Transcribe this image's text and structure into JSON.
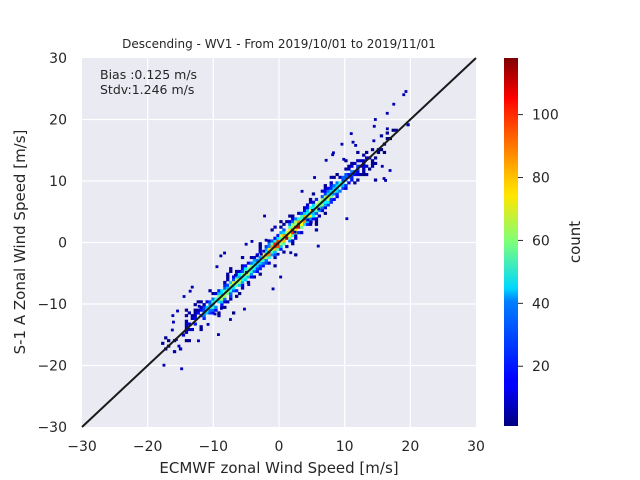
{
  "chart_data": {
    "type": "heatmap",
    "title": "Descending - WV1 - From 2019/10/01 to 2019/11/01",
    "xlabel": "ECMWF zonal Wind Speed [m/s]",
    "ylabel": "S-1 A Zonal Wind Speed [m/s]",
    "xlim": [
      -30,
      30
    ],
    "ylim": [
      -30,
      30
    ],
    "xticks": [
      "−30",
      "−20",
      "−10",
      "0",
      "10",
      "20",
      "30"
    ],
    "yticks": [
      "−30",
      "−20",
      "−10",
      "0",
      "10",
      "20",
      "30"
    ],
    "xtick_values": [
      -30,
      -20,
      -10,
      0,
      10,
      20,
      30
    ],
    "ytick_values": [
      -30,
      -20,
      -10,
      0,
      10,
      20,
      30
    ],
    "grid": true,
    "reference_line": {
      "x": [
        -30,
        30
      ],
      "y": [
        -30,
        30
      ],
      "color": "#1a1a1a"
    },
    "annotations": {
      "bias": "Bias :0.125 m/s",
      "stdv": "Stdv:1.246 m/s"
    },
    "colorbar": {
      "label": "count",
      "colormap": "jet",
      "range": [
        1,
        118
      ],
      "ticks": [
        "20",
        "40",
        "60",
        "80",
        "100"
      ],
      "tick_values": [
        20,
        40,
        60,
        80,
        100
      ]
    },
    "density_model": {
      "description": "2D histogram of (ECMWF, S-1A) zonal wind speed pairs concentrated along y=x",
      "x_range": [
        -22,
        22
      ],
      "bin_size": 0.45,
      "core_halfwidth": 1.2,
      "spread_sd": 1.25,
      "peak_count": 118,
      "peak_centers": [
        {
          "x": 1,
          "count": 118
        },
        {
          "x": 6,
          "count": 70
        },
        {
          "x": -7,
          "count": 75
        }
      ]
    }
  },
  "colors": {
    "plot_background": "#eaeaf2",
    "grid": "#ffffff",
    "text": "#262626"
  }
}
